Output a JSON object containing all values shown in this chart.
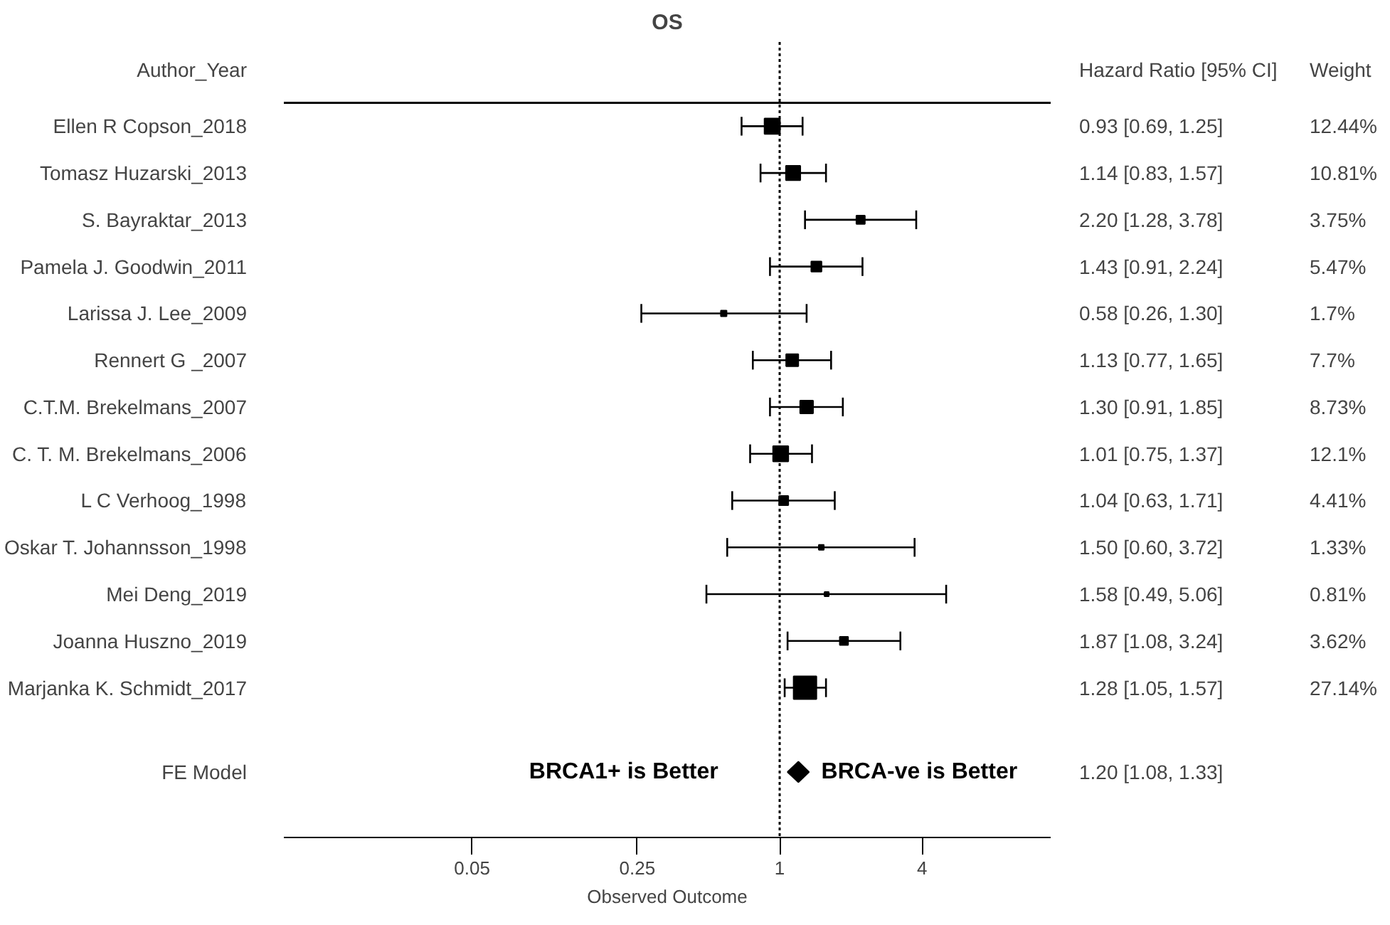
{
  "chart_data": {
    "type": "scatter",
    "orientation": "horizontal",
    "title": "OS",
    "ylabel": "Author_Year",
    "xlabel": "Observed Outcome",
    "categories": [
      "Ellen R Copson_2018",
      "Tomasz Huzarski_2013",
      "S. Bayraktar_2013",
      "Pamela J. Goodwin_2011",
      "Larissa J. Lee_2009",
      "Rennert G _2007",
      "C.T.M. Brekelmans_2007",
      "C. T. M. Brekelmans_2006",
      "L C Verhoog_1998",
      "Oskar T. Johannsson_1998",
      "Mei Deng_2019",
      "Joanna Huszno_2019",
      "Marjanka K. Schmidt_2017",
      "FE Model"
    ],
    "series": [
      {
        "color": "#000000",
        "marker": "square",
        "values": [
          0.93,
          1.14,
          2.2,
          1.43,
          0.58,
          1.13,
          1.3,
          1.01,
          1.04,
          1.5,
          1.58,
          1.87,
          1.28,
          1.2
        ],
        "errors": [
          [
            0.69,
            1.25
          ],
          [
            0.83,
            1.57
          ],
          [
            1.28,
            3.78
          ],
          [
            0.91,
            2.24
          ],
          [
            0.26,
            1.3
          ],
          [
            0.77,
            1.65
          ],
          [
            0.91,
            1.85
          ],
          [
            0.75,
            1.37
          ],
          [
            0.63,
            1.71
          ],
          [
            0.6,
            3.72
          ],
          [
            0.49,
            5.06
          ],
          [
            1.08,
            3.24
          ],
          [
            1.05,
            1.57
          ],
          [
            1.08,
            1.33
          ]
        ],
        "sizes": [
          0.458,
          0.398,
          0.138,
          0.202,
          0.063,
          0.284,
          0.322,
          0.446,
          0.162,
          0.049,
          0.03,
          0.133,
          1,
          null
        ],
        "value_labels": [
          "0.93 [0.69, 1.25]",
          "1.14 [0.83, 1.57]",
          "2.20 [1.28, 3.78]",
          "1.43 [0.91, 2.24]",
          "0.58 [0.26, 1.30]",
          "1.13 [0.77, 1.65]",
          "1.30 [0.91, 1.85]",
          "1.01 [0.75, 1.37]",
          "1.04 [0.63, 1.71]",
          "1.50 [0.60, 3.72]",
          "1.58 [0.49, 5.06]",
          "1.87 [1.08, 3.24]",
          "1.28 [1.05, 1.57]",
          "1.20 [1.08, 1.33]"
        ]
      }
    ],
    "log": "x",
    "xlim": [
      0.008,
      14
    ],
    "xticks": [
      0.05,
      0.25,
      1,
      4
    ],
    "grid": false,
    "ref_lines": [
      {
        "axis": "x",
        "value": 1,
        "line_style": "dotted",
        "color": "#000000"
      }
    ],
    "annotations": [
      "Hazard Ratio [95% CI]",
      "Weight",
      "BRCA1+ is Better",
      "BRCA-ve is Better",
      "12.44%",
      "10.81%",
      "3.75%",
      "5.47%",
      "1.7%",
      "7.7%",
      "8.73%",
      "12.1%",
      "4.41%",
      "1.33%",
      "0.81%",
      "3.62%",
      "27.14%"
    ]
  }
}
